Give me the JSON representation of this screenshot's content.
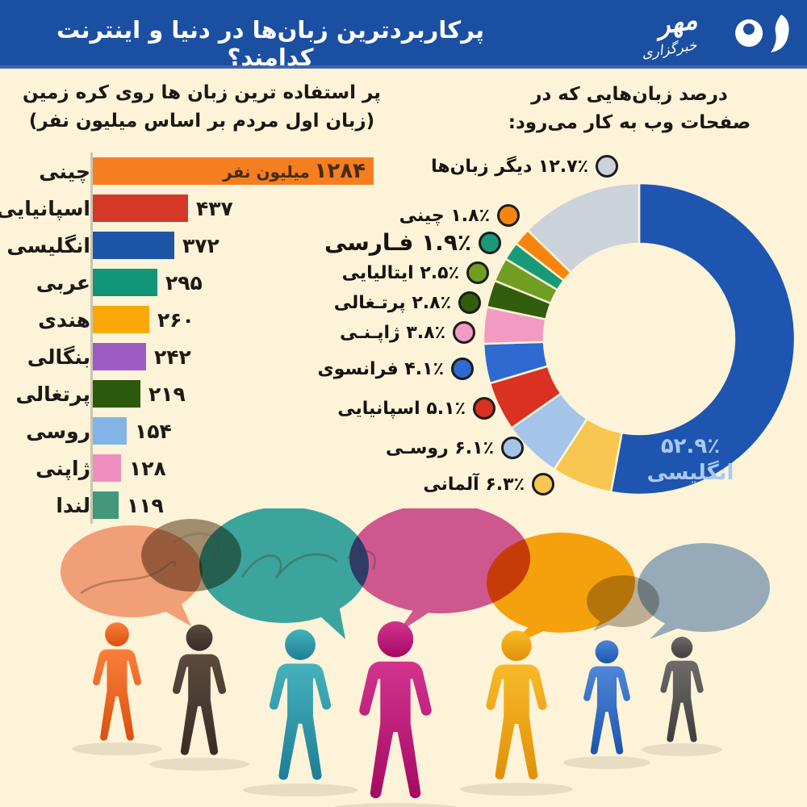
{
  "header": {
    "title": "پرکاربردترین زبان‌ها در دنیا و اینترنت کدامند؟",
    "logo_agency": "خبرگزاری",
    "logo_name": "مهر",
    "bg_color": "#1b4fa2"
  },
  "page": {
    "bg_color": "#fdf3d8"
  },
  "chart_data": [
    {
      "type": "bar",
      "orientation": "horizontal",
      "title": "پر استفاده ترین زبان ها روی کره زمین",
      "subtitle": "(زبان اول مردم بر اساس میلیون نفر)",
      "categories": [
        "چینی",
        "اسپانیایی",
        "انگلیسی",
        "عربی",
        "هندی",
        "بنگالی",
        "پرتغالی",
        "روسی",
        "ژاپنی",
        "لندا"
      ],
      "values": [
        1284,
        437,
        372,
        295,
        260,
        242,
        219,
        154,
        128,
        119
      ],
      "value_labels": [
        "۱۲۸۴",
        "۴۳۷",
        "۳۷۲",
        "۲۹۵",
        "۲۶۰",
        "۲۴۲",
        "۲۱۹",
        "۱۵۴",
        "۱۲۸",
        "۱۱۹"
      ],
      "first_bar_unit": "میلیون نفر",
      "colors": [
        "#f57e20",
        "#d63828",
        "#1e56a7",
        "#129678",
        "#f8a908",
        "#9c5cc4",
        "#2c5a0c",
        "#82b4e8",
        "#ee8fc0",
        "#41987a"
      ],
      "xlim": [
        0,
        1350
      ],
      "grid": false
    },
    {
      "type": "donut",
      "title": "درصد زبان‌هایی که در",
      "subtitle": "صفحات وب به کار می‌رود:",
      "direction": "clockwise",
      "start_angle": "top",
      "segments": [
        {
          "name": "انگلیسی",
          "value": 52.9,
          "percent_label": "۵۲.۹٪",
          "color": "#1d55b0",
          "legend_index": null
        },
        {
          "name": "آلمانی",
          "value": 6.3,
          "percent_label": "۶.۳٪",
          "color": "#f7c64e",
          "legend_index": 9
        },
        {
          "name": "روسـی",
          "value": 6.1,
          "percent_label": "۶.۱٪",
          "color": "#a5c4ea",
          "legend_index": 8
        },
        {
          "name": "اسپانیایی",
          "value": 5.1,
          "percent_label": "۵.۱٪",
          "color": "#da3122",
          "legend_index": 7
        },
        {
          "name": "فرانسوی",
          "value": 4.1,
          "percent_label": "۴.۱٪",
          "color": "#2e6ad0",
          "legend_index": 6
        },
        {
          "name": "ژاپـنـی",
          "value": 3.8,
          "percent_label": "۳.۸٪",
          "color": "#f29ac4",
          "legend_index": 5
        },
        {
          "name": "پرتـغالی",
          "value": 2.8,
          "percent_label": "۲.۸٪",
          "color": "#305e0d",
          "legend_index": 4
        },
        {
          "name": "ایتالیایی",
          "value": 2.5,
          "percent_label": "۲.۵٪",
          "color": "#6f9e22",
          "legend_index": 3
        },
        {
          "name": "فـارسی",
          "value": 1.9,
          "percent_label": "۱.۹٪",
          "color": "#189a79",
          "legend_index": 2,
          "emphasized": true
        },
        {
          "name": "چینی",
          "value": 1.8,
          "percent_label": "۱.۸٪",
          "color": "#f6850e",
          "legend_index": 1
        },
        {
          "name": "دیگر زبان‌ها",
          "value": 12.7,
          "percent_label": "۱۲.۷٪",
          "color": "#ccd2d9",
          "legend_index": 0
        }
      ],
      "inner_label": {
        "percent": "۵۲.۹٪",
        "label": "انگلیسی"
      }
    }
  ],
  "illustration": {
    "people_colors": [
      [
        "#f97f3c",
        "#da500e"
      ],
      [
        "#5b4a3d",
        "#3a2d25"
      ],
      [
        "#45b2bc",
        "#1e7e95"
      ],
      [
        "#d3338f",
        "#a50a62"
      ],
      [
        "#f9ba27",
        "#e0900a"
      ],
      [
        "#4f86d8",
        "#1c55ae"
      ],
      [
        "#6e6b69",
        "#403e3c"
      ]
    ],
    "bubble_colors": [
      "#f2a78c",
      "#a29382",
      "#3aacba",
      "#d05ca6",
      "#f7a90f",
      "#bdb7ae",
      "#97b4d8"
    ]
  }
}
